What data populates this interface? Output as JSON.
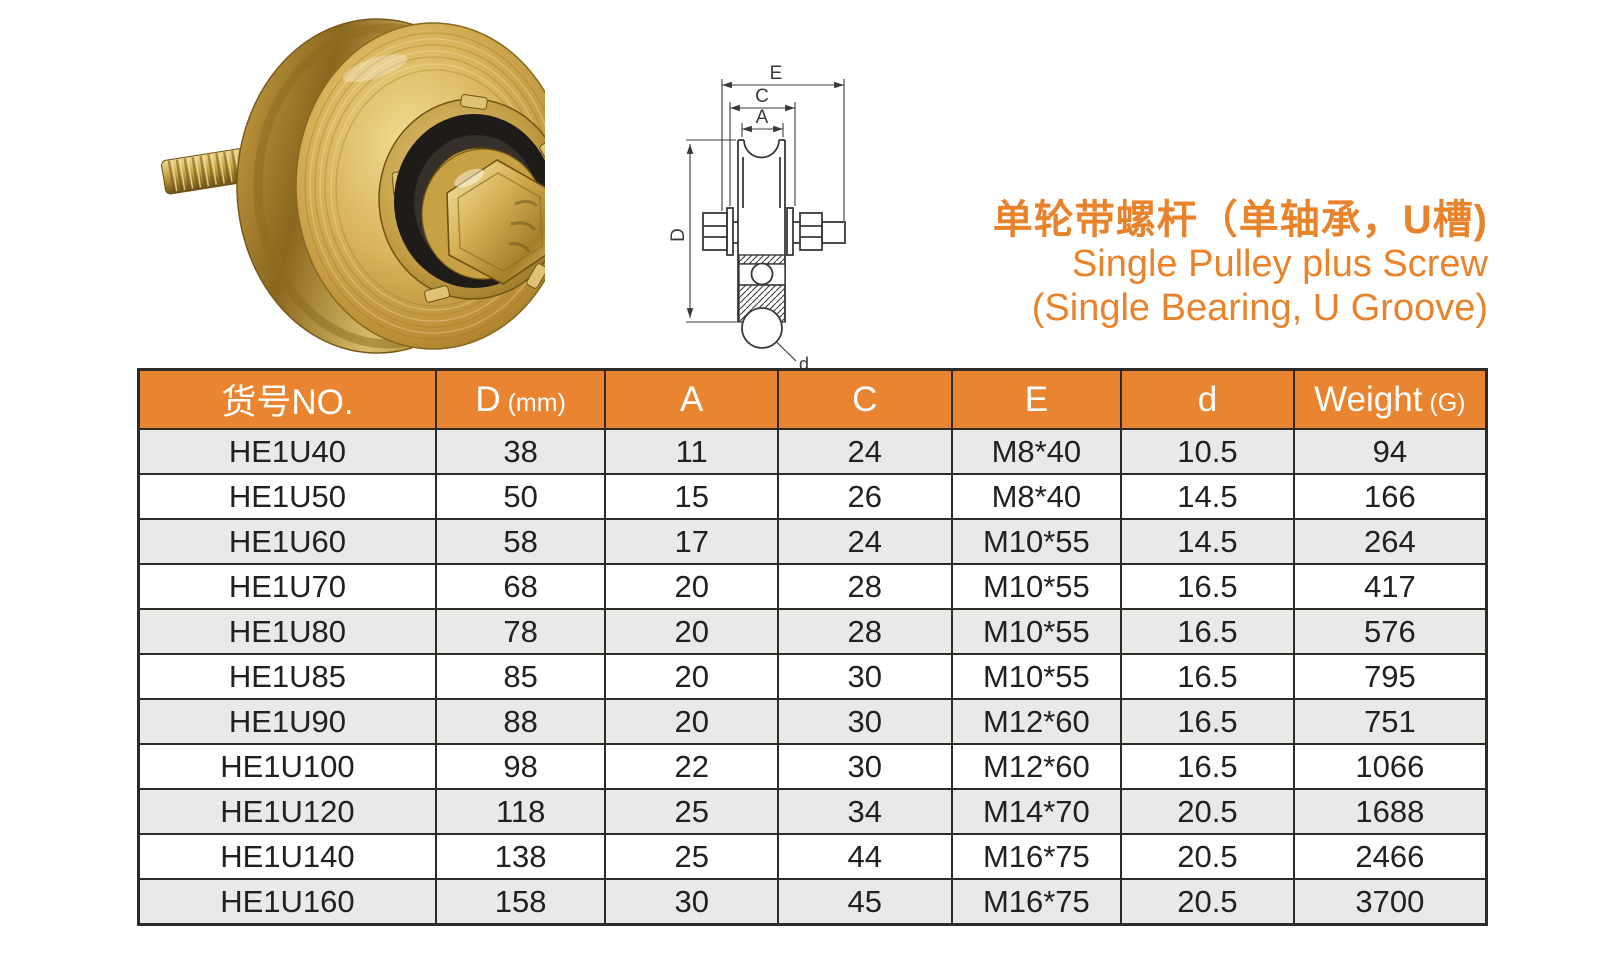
{
  "title": {
    "line1_zh": "单轮带螺杆（单轴承，U槽)",
    "line2_en": "Single Pulley plus Screw",
    "line3_en": "(Single Bearing, U Groove)",
    "color": "#E8832C"
  },
  "diagram": {
    "labels": {
      "E": "E",
      "C": "C",
      "A": "A",
      "D": "D",
      "d": "d"
    }
  },
  "table": {
    "headers": [
      {
        "label": "货号NO.",
        "unit": ""
      },
      {
        "label": "D",
        "unit": "(mm)"
      },
      {
        "label": "A",
        "unit": ""
      },
      {
        "label": "C",
        "unit": ""
      },
      {
        "label": "E",
        "unit": ""
      },
      {
        "label": "d",
        "unit": ""
      },
      {
        "label": "Weight",
        "unit": "(G)"
      }
    ],
    "rows": [
      [
        "HE1U40",
        "38",
        "11",
        "24",
        "M8*40",
        "10.5",
        "94"
      ],
      [
        "HE1U50",
        "50",
        "15",
        "26",
        "M8*40",
        "14.5",
        "166"
      ],
      [
        "HE1U60",
        "58",
        "17",
        "24",
        "M10*55",
        "14.5",
        "264"
      ],
      [
        "HE1U70",
        "68",
        "20",
        "28",
        "M10*55",
        "16.5",
        "417"
      ],
      [
        "HE1U80",
        "78",
        "20",
        "28",
        "M10*55",
        "16.5",
        "576"
      ],
      [
        "HE1U85",
        "85",
        "20",
        "30",
        "M10*55",
        "16.5",
        "795"
      ],
      [
        "HE1U90",
        "88",
        "20",
        "30",
        "M12*60",
        "16.5",
        "751"
      ],
      [
        "HE1U100",
        "98",
        "22",
        "30",
        "M12*60",
        "16.5",
        "1066"
      ],
      [
        "HE1U120",
        "118",
        "25",
        "34",
        "M14*70",
        "20.5",
        "1688"
      ],
      [
        "HE1U140",
        "138",
        "25",
        "44",
        "M16*75",
        "20.5",
        "2466"
      ],
      [
        "HE1U160",
        "158",
        "30",
        "45",
        "M16*75",
        "20.5",
        "3700"
      ]
    ],
    "colors": {
      "header_bg": "#E98430",
      "header_text": "#ffffff",
      "row_alt_bg": "#E9E9E7",
      "row_bg": "#ffffff",
      "border": "#2e2a28",
      "text": "#232020"
    }
  }
}
